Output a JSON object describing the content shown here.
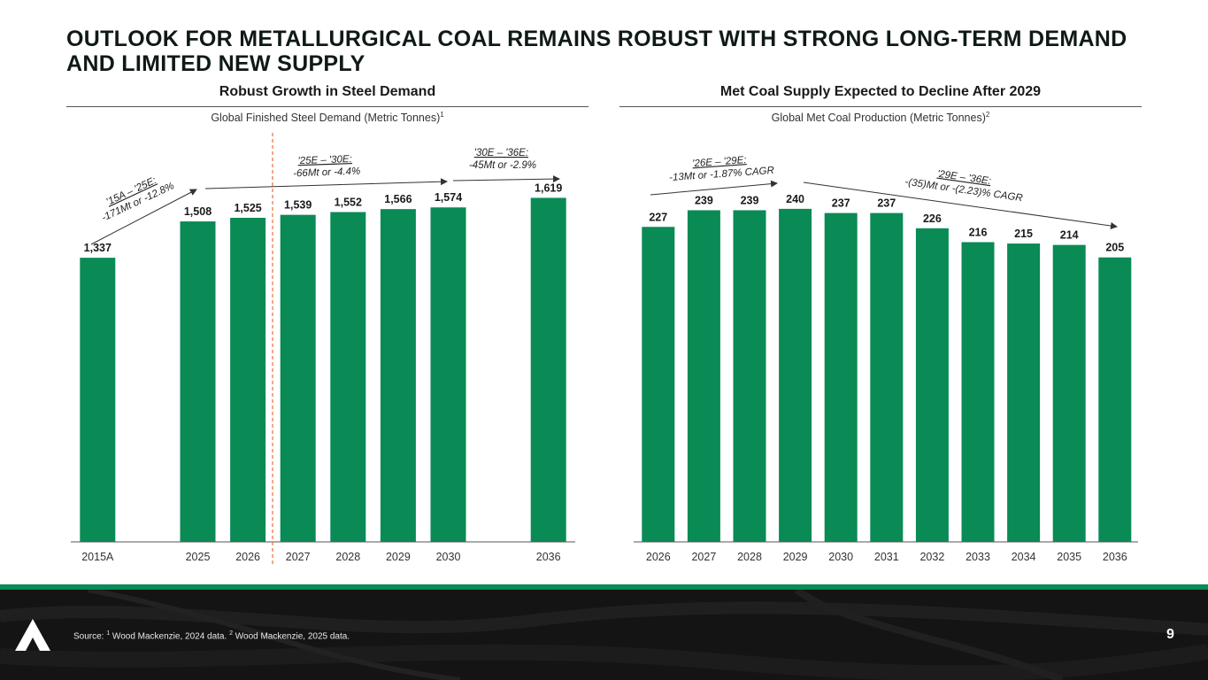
{
  "title": "OUTLOOK FOR METALLURGICAL COAL REMAINS ROBUST WITH STRONG LONG-TERM DEMAND AND LIMITED NEW SUPPLY",
  "left_panel": {
    "heading": "Robust Growth in Steel Demand",
    "subtitle": "Global Finished Steel Demand (Metric Tonnes)",
    "subtitle_note": "1",
    "annotations": [
      {
        "line1": "'15A – '25E:",
        "line2": "-171Mt or -12.8%"
      },
      {
        "line1": "'25E – '30E:",
        "line2": "-66Mt or -4.4%"
      },
      {
        "line1": "'30E – '36E:",
        "line2": "-45Mt or -2.9%"
      }
    ]
  },
  "right_panel": {
    "heading": "Met Coal Supply Expected to Decline After 2029",
    "subtitle": "Global Met Coal Production (Metric Tonnes)",
    "subtitle_note": "2",
    "annotations": [
      {
        "line1": "'26E – '29E:",
        "line2": "-13Mt or -1.87% CAGR"
      },
      {
        "line1": "'29E – '36E:",
        "line2": "-(35)Mt or -(2.23)% CAGR"
      }
    ]
  },
  "colors": {
    "bar": "#0a8a55",
    "accent_dash": "#e8703a",
    "footer": "#141414"
  },
  "chart_data": [
    {
      "type": "bar",
      "title": "Global Finished Steel Demand (Metric Tonnes)",
      "categories": [
        "2015A",
        "2025",
        "2026",
        "2027",
        "2028",
        "2029",
        "2030",
        "2036"
      ],
      "values": [
        1337,
        1508,
        1525,
        1539,
        1552,
        1566,
        1574,
        1619
      ],
      "labels": [
        "1,337",
        "1,508",
        "1,525",
        "1,539",
        "1,552",
        "1,566",
        "1,574",
        "1,619"
      ],
      "slots": [
        0,
        2,
        3,
        4,
        5,
        6,
        7,
        9
      ],
      "slot_count": 10,
      "ylim": [
        0,
        1750
      ]
    },
    {
      "type": "bar",
      "title": "Global Met Coal Production (Metric Tonnes)",
      "categories": [
        "2026",
        "2027",
        "2028",
        "2029",
        "2030",
        "2031",
        "2032",
        "2033",
        "2034",
        "2035",
        "2036"
      ],
      "values": [
        227,
        239,
        239,
        240,
        237,
        237,
        226,
        216,
        215,
        214,
        205
      ],
      "labels": [
        "227",
        "239",
        "239",
        "240",
        "237",
        "237",
        "226",
        "216",
        "215",
        "214",
        "205"
      ],
      "ylim": [
        0,
        268
      ]
    }
  ],
  "footer": {
    "source_prefix": "Source: ",
    "source_note1": "1",
    "source_text1": " Wood Mackenzie, 2024 data. ",
    "source_note2": "2",
    "source_text2": " Wood Mackenzie, 2025 data.",
    "page_number": "9"
  }
}
